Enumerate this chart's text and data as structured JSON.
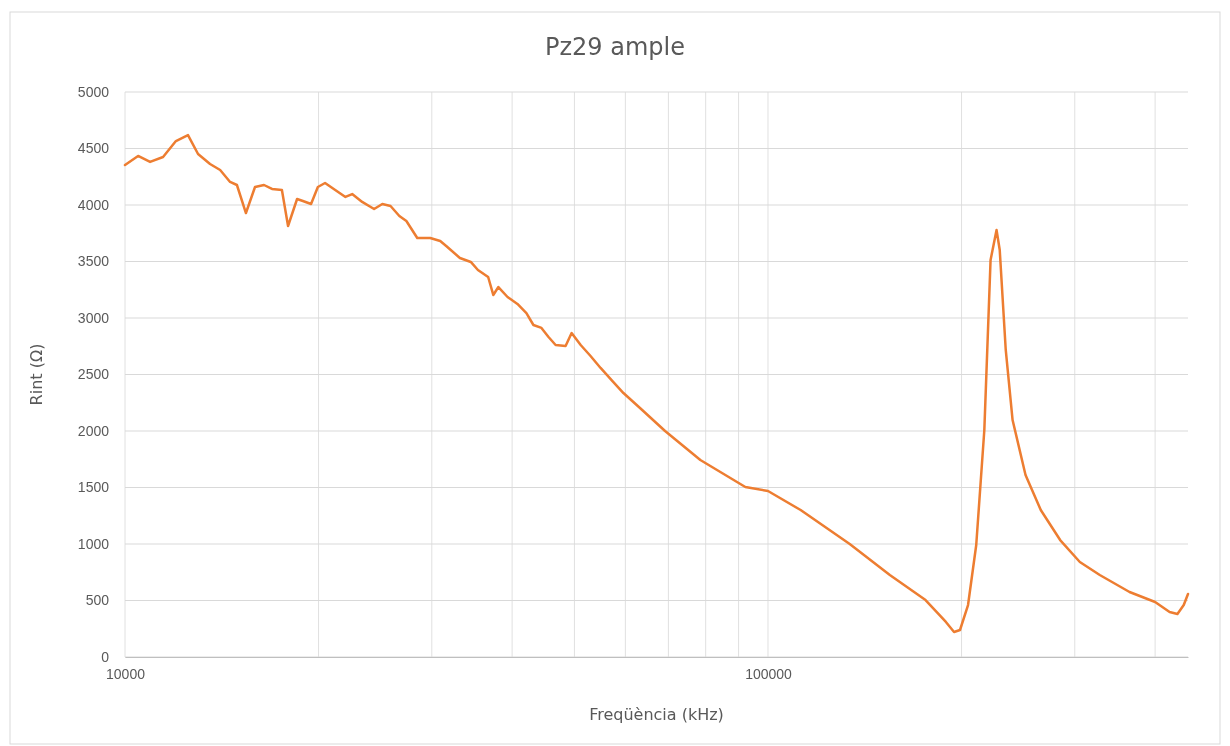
{
  "chart_data": {
    "type": "line",
    "title": "Pz29 ample",
    "xlabel": "Freqüència (kHz)",
    "ylabel": "Rint (Ω)",
    "log": "x",
    "grid": true,
    "marker": "none",
    "line_style": "solid",
    "xlim": [
      10000,
      450000
    ],
    "xticks": [
      10000,
      {
        "value": 20000,
        "label": null
      },
      {
        "value": 30000,
        "label": null
      },
      {
        "value": 40000,
        "label": null
      },
      {
        "value": 50000,
        "label": null
      },
      {
        "value": 60000,
        "label": null
      },
      {
        "value": 70000,
        "label": null
      },
      {
        "value": 80000,
        "label": null
      },
      {
        "value": 90000,
        "label": null
      },
      100000,
      {
        "value": 200000,
        "label": null
      },
      {
        "value": 300000,
        "label": null
      },
      {
        "value": 400000,
        "label": null
      }
    ],
    "ylim": [
      0,
      5000
    ],
    "yticks": [
      0,
      500,
      1000,
      1500,
      2000,
      2500,
      3000,
      3500,
      4000,
      4500,
      5000
    ],
    "series": [
      {
        "color": "#ed7d31",
        "x": [
          10000,
          10480,
          10940,
          11460,
          12000,
          12530,
          12990,
          13560,
          14060,
          14570,
          14930,
          15420,
          15930,
          16450,
          16930,
          17540,
          17930,
          18520,
          18910,
          19470,
          19950,
          20470,
          21230,
          22020,
          22560,
          23380,
          24400,
          25130,
          25880,
          26710,
          27390,
          28480,
          29830,
          30920,
          31590,
          33180,
          34500,
          35390,
          36710,
          37390,
          38080,
          39350,
          40770,
          42100,
          43170,
          44430,
          45570,
          46740,
          48440,
          49500,
          51130,
          52970,
          54910,
          57300,
          59590,
          63230,
          69170,
          78490,
          92210,
          100000,
          112400,
          134000,
          154700,
          175800,
          189100,
          194700,
          198900,
          204700,
          210800,
          217000,
          221900,
          226700,
          229300,
          234300,
          240100,
          251500,
          265600,
          284700,
          305500,
          328100,
          365000,
          400000,
          421300,
          433300,
          443200,
          450000
        ],
        "values": [
          4354,
          4434,
          4381,
          4425,
          4566,
          4619,
          4451,
          4363,
          4310,
          4204,
          4177,
          3929,
          4159,
          4177,
          4142,
          4133,
          3814,
          4053,
          4035,
          4009,
          4159,
          4195,
          4133,
          4071,
          4097,
          4027,
          3965,
          4009,
          3991,
          3903,
          3858,
          3708,
          3708,
          3681,
          3637,
          3531,
          3496,
          3425,
          3363,
          3204,
          3274,
          3186,
          3124,
          3044,
          2938,
          2912,
          2832,
          2761,
          2752,
          2867,
          2761,
          2664,
          2558,
          2442,
          2336,
          2204,
          2000,
          1743,
          1504,
          1469,
          1301,
          1000,
          726,
          504,
          310,
          221,
          239,
          460,
          991,
          2009,
          3513,
          3779,
          3602,
          2717,
          2097,
          1611,
          1301,
          1035,
          841,
          726,
          575,
          487,
          398,
          381,
          460,
          558
        ]
      }
    ]
  }
}
